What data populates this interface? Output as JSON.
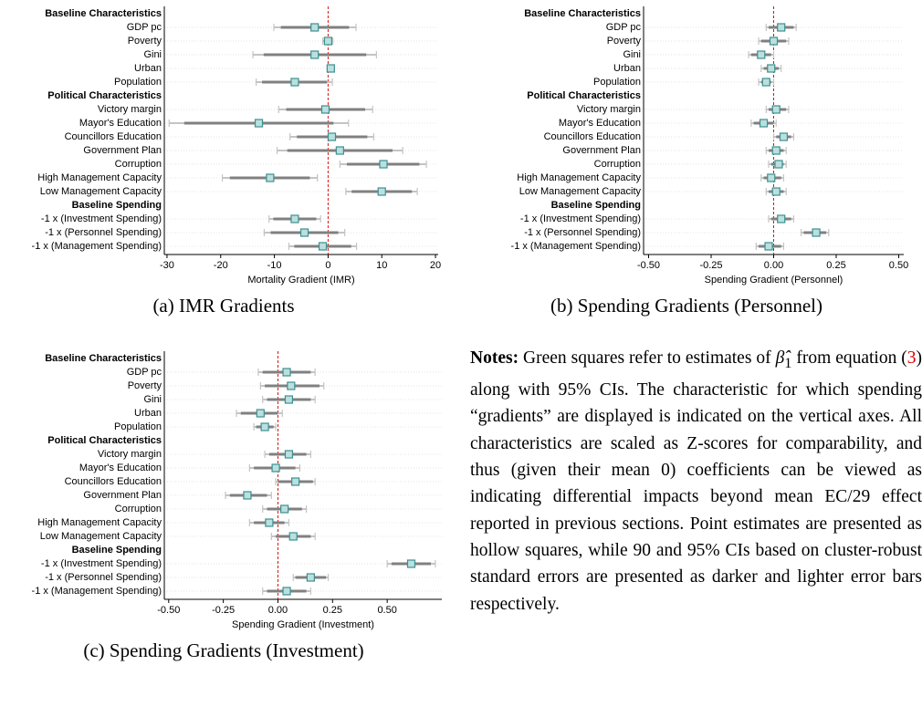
{
  "chart_data": [
    {
      "type": "coefplot",
      "caption": "(a) IMR Gradients",
      "x_label": "Mortality Gradient (IMR)",
      "categories": [
        "Baseline Characteristics",
        "GDP pc",
        "Poverty",
        "Gini",
        "Urban",
        "Population",
        "Political Characteristics",
        "Victory margin",
        "Mayor's Education",
        "Councillors Education",
        "Government Plan",
        "Corruption",
        "High Management Capacity",
        "Low Management Capacity",
        "Baseline Spending",
        "-1 x (Investment Spending)",
        "-1 x (Personnel Spending)",
        "-1 x (Management Spending)"
      ],
      "values": [
        null,
        -2.5,
        0.0,
        -2.5,
        0.5,
        -6.2,
        null,
        -0.5,
        -12.9,
        0.7,
        2.2,
        10.3,
        -10.8,
        10.0,
        null,
        -6.2,
        -4.4,
        -1.0
      ],
      "ci90": [
        null,
        [
          -8.8,
          3.9
        ],
        [
          -0.8,
          0.7
        ],
        [
          -12.0,
          7.1
        ],
        [
          0.1,
          0.9
        ],
        [
          -12.3,
          -0.2
        ],
        null,
        [
          -7.8,
          6.9
        ],
        [
          -26.8,
          1.0
        ],
        [
          -5.8,
          7.3
        ],
        [
          -7.6,
          12.0
        ],
        [
          3.5,
          17.0
        ],
        [
          -18.3,
          -3.4
        ],
        [
          4.4,
          15.6
        ],
        null,
        [
          -10.2,
          -2.2
        ],
        [
          -10.7,
          1.9
        ],
        [
          -6.3,
          4.3
        ]
      ],
      "ci95": [
        null,
        [
          -10.1,
          5.2
        ],
        [
          -1.0,
          0.9
        ],
        [
          -14.0,
          9.0
        ],
        [
          0.0,
          1.0
        ],
        [
          -13.4,
          0.8
        ],
        null,
        [
          -9.2,
          8.3
        ],
        [
          -29.6,
          3.8
        ],
        [
          -7.1,
          8.5
        ],
        [
          -9.5,
          13.9
        ],
        [
          2.2,
          18.3
        ],
        [
          -19.7,
          -2.0
        ],
        [
          3.3,
          16.6
        ],
        null,
        [
          -11.0,
          -1.4
        ],
        [
          -11.9,
          3.1
        ],
        [
          -7.3,
          5.3
        ]
      ],
      "xlim": [
        -30.5,
        20.5
      ],
      "xticks": [
        -30,
        -20,
        -10,
        0,
        10,
        20
      ],
      "reference_line": 0,
      "grid": true,
      "marker_color": "#3e8f8f",
      "marker_fill": "#b9e0df",
      "ci90_color": "#808080",
      "ci95_color": "#c4c4c4",
      "reference_color": "#e01010"
    },
    {
      "type": "coefplot",
      "caption": "(b) Spending Gradients (Personnel)",
      "x_label": "Spending Gradient (Personnel)",
      "categories": [
        "Baseline Characteristics",
        "GDP pc",
        "Poverty",
        "Gini",
        "Urban",
        "Population",
        "Political Characteristics",
        "Victory margin",
        "Mayor's Education",
        "Councillors Education",
        "Government Plan",
        "Corruption",
        "High Management Capacity",
        "Low Management Capacity",
        "Baseline Spending",
        "-1 x (Investment Spending)",
        "-1 x (Personnel Spending)",
        "-1 x (Management Spending)"
      ],
      "values": [
        null,
        0.03,
        0.0,
        -0.05,
        -0.01,
        -0.03,
        null,
        0.01,
        -0.04,
        0.04,
        0.01,
        0.02,
        -0.01,
        0.01,
        null,
        0.03,
        0.17,
        -0.02
      ],
      "ci90": [
        null,
        [
          -0.02,
          0.08
        ],
        [
          -0.05,
          0.05
        ],
        [
          -0.09,
          -0.01
        ],
        [
          -0.04,
          0.02
        ],
        [
          -0.05,
          -0.01
        ],
        null,
        [
          -0.02,
          0.05
        ],
        [
          -0.08,
          0.0
        ],
        [
          0.01,
          0.07
        ],
        [
          -0.02,
          0.04
        ],
        [
          -0.01,
          0.04
        ],
        [
          -0.04,
          0.03
        ],
        [
          -0.02,
          0.04
        ],
        null,
        [
          -0.01,
          0.07
        ],
        [
          0.12,
          0.21
        ],
        [
          -0.06,
          0.03
        ]
      ],
      "ci95": [
        null,
        [
          -0.03,
          0.09
        ],
        [
          -0.06,
          0.06
        ],
        [
          -0.1,
          0.0
        ],
        [
          -0.05,
          0.03
        ],
        [
          -0.06,
          0.0
        ],
        null,
        [
          -0.03,
          0.06
        ],
        [
          -0.09,
          0.01
        ],
        [
          0.0,
          0.08
        ],
        [
          -0.03,
          0.05
        ],
        [
          -0.02,
          0.05
        ],
        [
          -0.05,
          0.04
        ],
        [
          -0.03,
          0.05
        ],
        null,
        [
          -0.02,
          0.08
        ],
        [
          0.11,
          0.22
        ],
        [
          -0.07,
          0.04
        ]
      ],
      "xlim": [
        -0.52,
        0.52
      ],
      "xticks": [
        {
          "value": -0.5,
          "label": "-0.50"
        },
        {
          "value": -0.25,
          "label": "-0.25"
        },
        {
          "value": 0,
          "label": "0.00"
        },
        {
          "value": 0.25,
          "label": "0.25"
        },
        {
          "value": 0.5,
          "label": "0.50"
        }
      ],
      "reference_line": 0,
      "grid": true,
      "marker_color": "#3e8f8f",
      "marker_fill": "#b9e0df",
      "ci90_color": "#808080",
      "ci95_color": "#c4c4c4",
      "reference_color": "#e01010"
    },
    {
      "type": "coefplot",
      "caption": "(c) Spending Gradients (Investment)",
      "x_label": "Spending Gradient (Investment)",
      "categories": [
        "Baseline Characteristics",
        "GDP pc",
        "Poverty",
        "Gini",
        "Urban",
        "Population",
        "Political Characteristics",
        "Victory margin",
        "Mayor's Education",
        "Councillors Education",
        "Government Plan",
        "Corruption",
        "High Management Capacity",
        "Low Management Capacity",
        "Baseline Spending",
        "-1 x (Investment Spending)",
        "-1 x (Personnel Spending)",
        "-1 x (Management Spending)"
      ],
      "values": [
        null,
        0.04,
        0.06,
        0.05,
        -0.08,
        -0.06,
        null,
        0.05,
        -0.01,
        0.08,
        -0.14,
        0.03,
        -0.04,
        0.07,
        null,
        0.61,
        0.15,
        0.04
      ],
      "ci90": [
        null,
        [
          -0.07,
          0.15
        ],
        [
          -0.06,
          0.19
        ],
        [
          -0.05,
          0.15
        ],
        [
          -0.17,
          0.0
        ],
        [
          -0.1,
          -0.02
        ],
        null,
        [
          -0.04,
          0.13
        ],
        [
          -0.11,
          0.08
        ],
        [
          0.0,
          0.16
        ],
        [
          -0.22,
          -0.05
        ],
        [
          -0.05,
          0.11
        ],
        [
          -0.11,
          0.03
        ],
        [
          -0.01,
          0.15
        ],
        null,
        [
          0.52,
          0.7
        ],
        [
          0.08,
          0.22
        ],
        [
          -0.05,
          0.13
        ]
      ],
      "ci95": [
        null,
        [
          -0.09,
          0.17
        ],
        [
          -0.08,
          0.21
        ],
        [
          -0.07,
          0.17
        ],
        [
          -0.19,
          0.02
        ],
        [
          -0.11,
          -0.01
        ],
        null,
        [
          -0.06,
          0.15
        ],
        [
          -0.13,
          0.1
        ],
        [
          -0.01,
          0.17
        ],
        [
          -0.24,
          -0.03
        ],
        [
          -0.07,
          0.13
        ],
        [
          -0.13,
          0.05
        ],
        [
          -0.03,
          0.17
        ],
        null,
        [
          0.5,
          0.72
        ],
        [
          0.07,
          0.23
        ],
        [
          -0.07,
          0.15
        ]
      ],
      "xlim": [
        -0.52,
        0.75
      ],
      "xticks": [
        {
          "value": -0.5,
          "label": "-0.50"
        },
        {
          "value": -0.25,
          "label": "-0.25"
        },
        {
          "value": 0,
          "label": "0.00"
        },
        {
          "value": 0.25,
          "label": "0.25"
        },
        {
          "value": 0.5,
          "label": "0.50"
        }
      ],
      "reference_line": 0,
      "grid": true,
      "marker_color": "#3e8f8f",
      "marker_fill": "#b9e0df",
      "ci90_color": "#808080",
      "ci95_color": "#c4c4c4",
      "reference_color": "#e01010"
    }
  ],
  "notes": {
    "label": "Notes:",
    "text_1": "Green squares refer to estimates of",
    "symbol": "β̂",
    "subscript": "1",
    "text_2": "from equation (",
    "reference": "3",
    "text_3": ") along with 95% CIs. The characteristic for which spending “gradients” are displayed is indicated on the vertical axes. All characteristics are scaled as Z-scores for comparability, and thus (given their mean 0) coefficients can be viewed as indicating differential impacts beyond mean EC/29 effect reported in previous sections. Point estimates are presented as hollow squares, while 90 and 95% CIs based on cluster-robust standard errors are presented as darker and lighter error bars respectively."
  }
}
